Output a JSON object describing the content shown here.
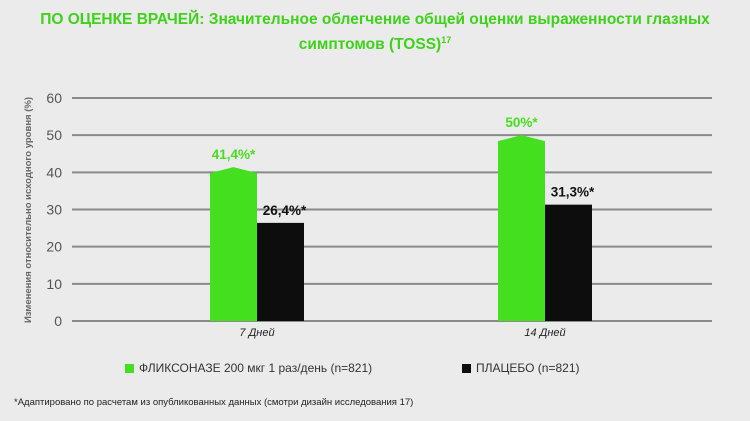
{
  "title": {
    "text": "ПО ОЦЕНКЕ ВРАЧЕЙ: Значительное облегчение общей оценки выраженности глазных симптомов (TOSS)",
    "superscript": "17"
  },
  "footnote": "*Адаптировано по расчетам из опубликованных данных (смотри дизайн исследования 17)",
  "chart_data": {
    "type": "bar",
    "title": "ПО ОЦЕНКЕ ВРАЧЕЙ: Значительное облегчение общей оценки выраженности глазных симптомов (TOSS)17",
    "categories": [
      "7 Дней",
      "14 Дней"
    ],
    "series": [
      {
        "name": "ФЛИКСОНАЗЕ 200 мкг 1 раз/день (n=821)",
        "color": "#44e01f",
        "values": [
          41.4,
          50
        ],
        "labels": [
          "41,4%*",
          "50%*"
        ]
      },
      {
        "name": "ПЛАЦЕБО (n=821)",
        "color": "#0d0d0d",
        "values": [
          26.4,
          31.3
        ],
        "labels": [
          "26,4%*",
          "31,3%*"
        ]
      }
    ],
    "ylabel": "Изменения относительно исходного уровня (%)",
    "xlabel": "",
    "ylim": [
      0,
      60
    ],
    "yticks": [
      "0",
      "10",
      "20",
      "30",
      "40",
      "50",
      "60"
    ],
    "grid": true,
    "legend_position": "bottom"
  },
  "colors": {
    "accent": "#3fd21a",
    "green_bar": "#44e01f",
    "black_bar": "#0d0d0d",
    "grid": "#8a8a8a"
  }
}
